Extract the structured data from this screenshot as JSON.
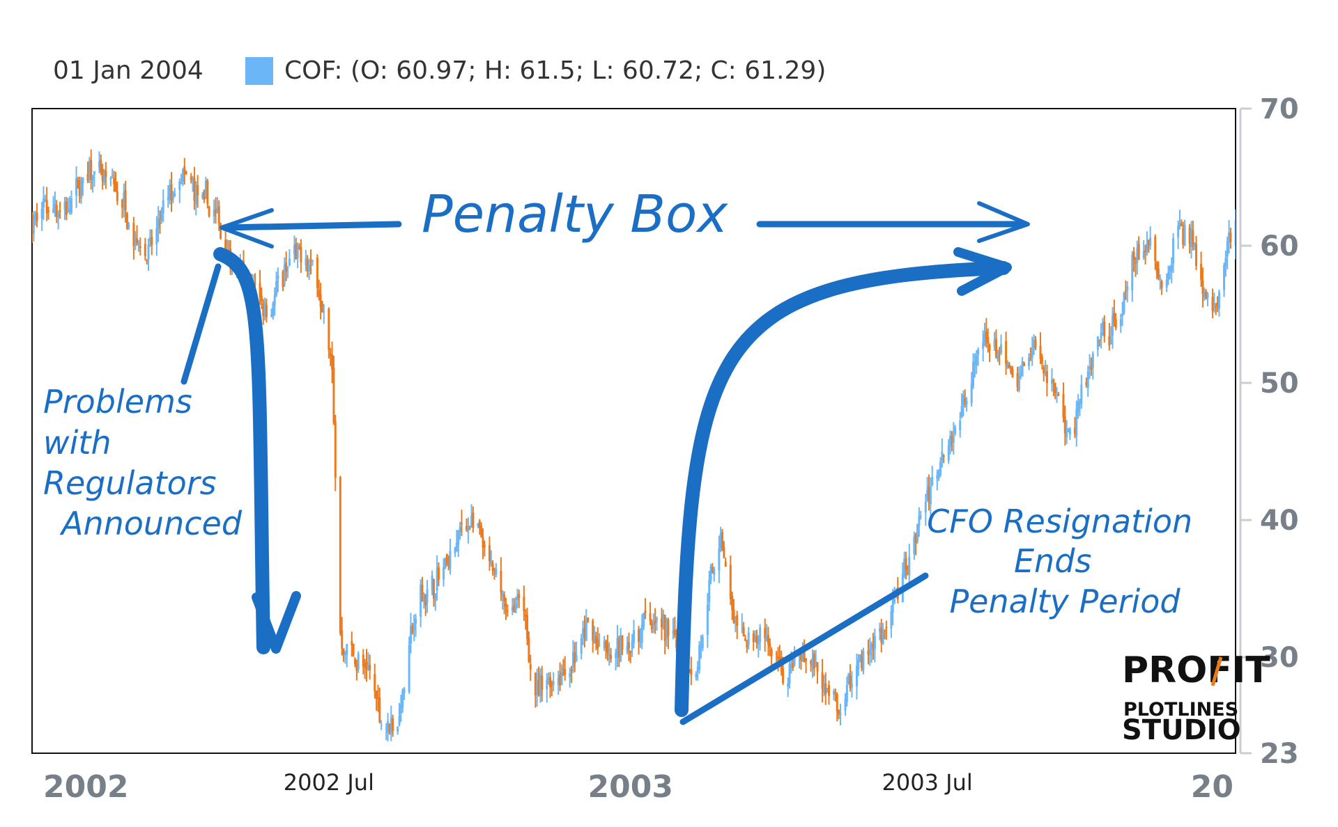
{
  "colors": {
    "up": "#6bb6f6",
    "down": "#ec7a1c",
    "annotation": "#1a6fc4",
    "axis_text": "#777f88",
    "frame": "#111111"
  },
  "chart_data": {
    "type": "candlestick",
    "legend": {
      "date": "01 Jan 2004",
      "series_label": "COF: (O: 60.97; H: 61.5; L: 60.72; C: 61.29)"
    },
    "ylim": [
      23,
      70
    ],
    "yticks": [
      "70",
      "60",
      "50",
      "40",
      "30",
      "23"
    ],
    "ytick_values": [
      70,
      60,
      50,
      40,
      30,
      23
    ],
    "xlim": [
      "2002-01-01",
      "2004-01-05"
    ],
    "xticks": [
      {
        "date": "2002-01-01",
        "label": "2002",
        "major": true
      },
      {
        "date": "2002-07-01",
        "label": "2002 Jul",
        "major": false
      },
      {
        "date": "2003-01-01",
        "label": "2003",
        "major": true
      },
      {
        "date": "2003-07-01",
        "label": "2003 Jul",
        "major": false
      },
      {
        "date": "2004-01-01",
        "label": "20",
        "major": true
      }
    ],
    "price_path": [
      [
        "2002-01-01",
        62
      ],
      [
        "2002-01-20",
        63
      ],
      [
        "2002-02-10",
        65
      ],
      [
        "2002-02-28",
        63
      ],
      [
        "2002-03-15",
        60
      ],
      [
        "2002-04-01",
        64
      ],
      [
        "2002-04-20",
        62
      ],
      [
        "2002-05-10",
        58
      ],
      [
        "2002-05-25",
        56
      ],
      [
        "2002-06-10",
        59
      ],
      [
        "2002-06-25",
        57
      ],
      [
        "2002-07-03",
        50
      ],
      [
        "2002-07-08",
        31
      ],
      [
        "2002-07-20",
        30
      ],
      [
        "2002-08-01",
        26
      ],
      [
        "2002-08-10",
        25
      ],
      [
        "2002-08-25",
        34
      ],
      [
        "2002-09-10",
        36
      ],
      [
        "2002-09-25",
        40
      ],
      [
        "2002-10-10",
        35
      ],
      [
        "2002-10-25",
        33
      ],
      [
        "2002-11-05",
        28
      ],
      [
        "2002-11-20",
        30
      ],
      [
        "2002-12-05",
        32
      ],
      [
        "2002-12-20",
        29
      ],
      [
        "2003-01-10",
        33
      ],
      [
        "2003-01-25",
        31
      ],
      [
        "2003-02-10",
        30
      ],
      [
        "2003-02-25",
        38
      ],
      [
        "2003-03-05",
        32
      ],
      [
        "2003-03-25",
        30
      ],
      [
        "2003-04-10",
        29
      ],
      [
        "2003-04-22",
        30
      ],
      [
        "2003-05-01",
        27
      ],
      [
        "2003-05-08",
        26
      ],
      [
        "2003-05-20",
        30
      ],
      [
        "2003-06-05",
        32
      ],
      [
        "2003-06-20",
        37
      ],
      [
        "2003-07-01",
        42
      ],
      [
        "2003-07-15",
        47
      ],
      [
        "2003-07-30",
        51
      ],
      [
        "2003-08-10",
        53
      ],
      [
        "2003-08-25",
        49
      ],
      [
        "2003-09-05",
        52
      ],
      [
        "2003-09-15",
        50
      ],
      [
        "2003-09-25",
        47
      ],
      [
        "2003-10-05",
        49
      ],
      [
        "2003-10-15",
        52
      ],
      [
        "2003-10-28",
        55
      ],
      [
        "2003-11-05",
        58
      ],
      [
        "2003-11-15",
        60
      ],
      [
        "2003-11-22",
        57
      ],
      [
        "2003-12-01",
        62
      ],
      [
        "2003-12-10",
        61
      ],
      [
        "2003-12-18",
        58
      ],
      [
        "2003-12-25",
        56
      ],
      [
        "2004-01-01",
        61
      ]
    ],
    "annotations": {
      "penalty_box": "Penalty Box",
      "problems": [
        "Problems",
        "with",
        "Regulators",
        "Announced"
      ],
      "cfo": [
        "CFO Resignation",
        "Ends",
        "Penalty Period"
      ]
    }
  },
  "logo": {
    "line1": "PROFIT",
    "line2": "PLOTLINES",
    "line3": "STUDIO"
  }
}
